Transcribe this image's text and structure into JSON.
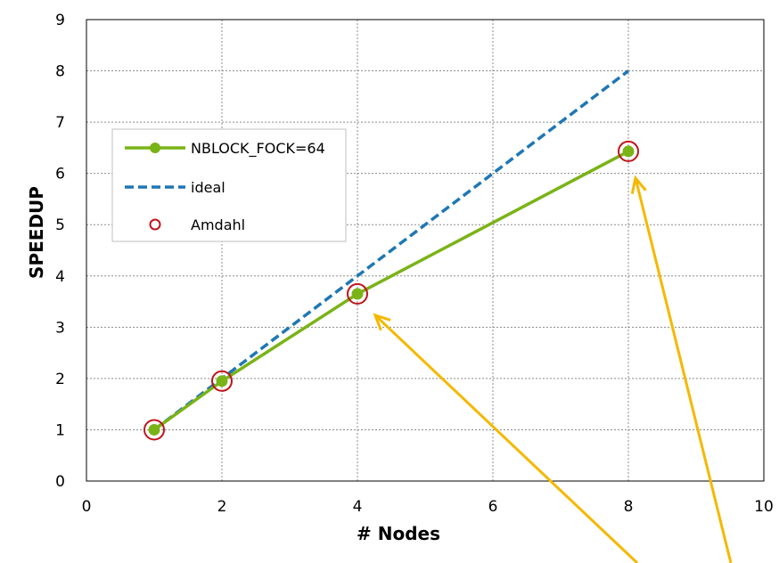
{
  "chart_data": {
    "type": "line",
    "xlabel": "# Nodes",
    "ylabel": "SPEEDUP",
    "xlim": [
      0,
      10
    ],
    "ylim": [
      0,
      9
    ],
    "xticks": [
      0,
      2,
      4,
      6,
      8,
      10
    ],
    "yticks": [
      0,
      1,
      2,
      3,
      4,
      5,
      6,
      7,
      8,
      9
    ],
    "grid": true,
    "legend_position": "upper-left",
    "series": [
      {
        "name": "NBLOCK_FOCK=64",
        "style": "solid-line-with-markers",
        "color": "#7ab317",
        "x": [
          1,
          2,
          4,
          8
        ],
        "y": [
          1.0,
          1.95,
          3.65,
          6.43
        ]
      },
      {
        "name": "ideal",
        "style": "dashed-line",
        "color": "#1f77b4",
        "x": [
          1,
          2,
          4,
          8
        ],
        "y": [
          1,
          2,
          4,
          8
        ]
      },
      {
        "name": "Amdahl",
        "style": "open-circle-markers",
        "color": "#c0141c",
        "x": [
          1,
          2,
          4,
          8
        ],
        "y": [
          1.0,
          1.95,
          3.65,
          6.43
        ]
      }
    ],
    "annotations": [
      {
        "type": "arrow",
        "color": "#f5b800",
        "points_to": {
          "x": 4,
          "y": 3.65
        }
      },
      {
        "type": "arrow",
        "color": "#f5b800",
        "points_to": {
          "x": 8,
          "y": 6.43
        }
      }
    ]
  }
}
